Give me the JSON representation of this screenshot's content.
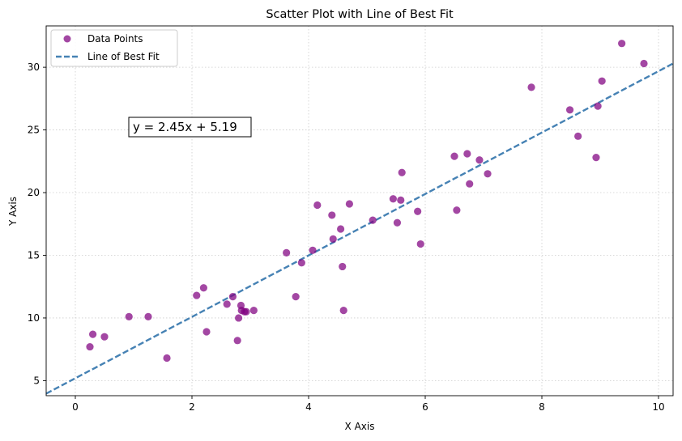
{
  "chart_data": {
    "type": "scatter",
    "title": "Scatter Plot with Line of Best Fit",
    "xlabel": "X Axis",
    "ylabel": "Y Axis",
    "xlim": [
      -0.5,
      10.25
    ],
    "ylim": [
      3.8,
      33.3
    ],
    "xticks": [
      0,
      2,
      4,
      6,
      8,
      10
    ],
    "yticks": [
      5,
      10,
      15,
      20,
      25,
      30
    ],
    "grid": true,
    "legend_position": "top-left",
    "annotation": "y = 2.45x + 5.19",
    "colors": {
      "points": "#800080",
      "line": "#4682b4",
      "grid": "#cccccc"
    },
    "series": [
      {
        "name": "Data Points",
        "kind": "scatter",
        "points": [
          [
            0.25,
            7.7
          ],
          [
            0.3,
            8.7
          ],
          [
            0.5,
            8.5
          ],
          [
            0.92,
            10.1
          ],
          [
            1.25,
            10.1
          ],
          [
            1.57,
            6.8
          ],
          [
            2.08,
            11.8
          ],
          [
            2.2,
            12.4
          ],
          [
            2.25,
            8.9
          ],
          [
            2.6,
            11.1
          ],
          [
            2.7,
            11.7
          ],
          [
            2.78,
            8.2
          ],
          [
            2.8,
            10.0
          ],
          [
            2.84,
            11.0
          ],
          [
            2.85,
            10.6
          ],
          [
            2.9,
            10.5
          ],
          [
            2.93,
            10.5
          ],
          [
            3.06,
            10.6
          ],
          [
            3.62,
            15.2
          ],
          [
            3.78,
            11.7
          ],
          [
            3.88,
            14.4
          ],
          [
            4.07,
            15.4
          ],
          [
            4.15,
            19.0
          ],
          [
            4.4,
            18.2
          ],
          [
            4.42,
            16.3
          ],
          [
            4.55,
            17.1
          ],
          [
            4.58,
            14.1
          ],
          [
            4.6,
            10.6
          ],
          [
            4.7,
            19.1
          ],
          [
            5.1,
            17.8
          ],
          [
            5.45,
            19.5
          ],
          [
            5.52,
            17.6
          ],
          [
            5.58,
            19.4
          ],
          [
            5.6,
            21.6
          ],
          [
            5.87,
            18.5
          ],
          [
            5.92,
            15.9
          ],
          [
            6.5,
            22.9
          ],
          [
            6.54,
            18.6
          ],
          [
            6.72,
            23.1
          ],
          [
            6.76,
            20.7
          ],
          [
            6.93,
            22.6
          ],
          [
            7.07,
            21.5
          ],
          [
            7.82,
            28.4
          ],
          [
            8.48,
            26.6
          ],
          [
            8.62,
            24.5
          ],
          [
            8.93,
            22.8
          ],
          [
            8.96,
            26.9
          ],
          [
            9.03,
            28.9
          ],
          [
            9.37,
            31.9
          ],
          [
            9.75,
            30.3
          ]
        ]
      },
      {
        "name": "Line of Best Fit",
        "kind": "line",
        "slope": 2.45,
        "intercept": 5.19
      }
    ]
  }
}
